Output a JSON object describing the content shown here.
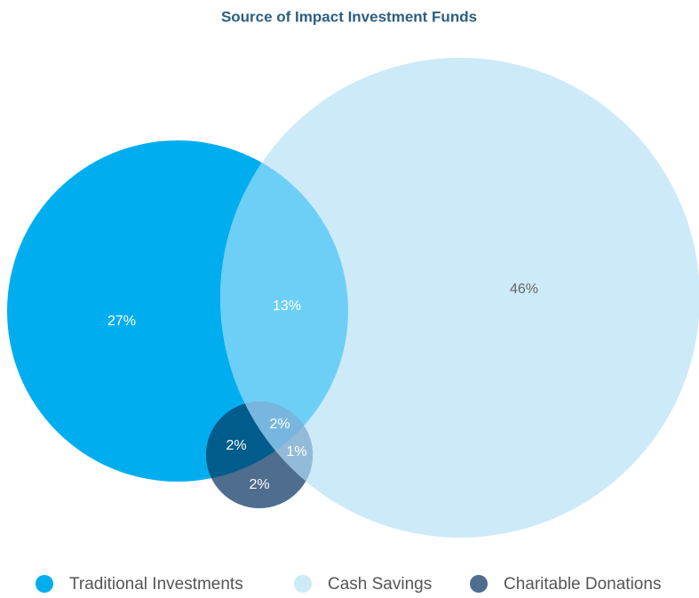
{
  "chart_data": {
    "type": "venn",
    "title": "Source of Impact Investment Funds",
    "sets": [
      {
        "name": "Traditional Investments",
        "color": "#00aeef"
      },
      {
        "name": "Cash Savings",
        "color": "#cdeaf9"
      },
      {
        "name": "Charitable Donations",
        "color": "#4f6d8f"
      }
    ],
    "regions": [
      {
        "sets": [
          0
        ],
        "color": "#00aeef"
      },
      {
        "sets": [
          0,
          1
        ],
        "color": "#6dcff6"
      },
      {
        "sets": [
          1
        ],
        "color": "#cdeaf9"
      },
      {
        "sets": [
          0,
          1,
          2
        ],
        "color": "#77b6de"
      },
      {
        "sets": [
          0,
          2
        ],
        "color": "#005c8a"
      },
      {
        "sets": [
          1,
          2
        ],
        "color": "#94bad9"
      },
      {
        "sets": [
          2
        ],
        "color": "#4f6d8f"
      }
    ],
    "values": [
      27,
      13,
      46,
      2,
      2,
      1,
      2
    ],
    "value_labels": [
      "27%",
      "13%",
      "46%",
      "2%",
      "2%",
      "1%",
      "2%"
    ]
  }
}
